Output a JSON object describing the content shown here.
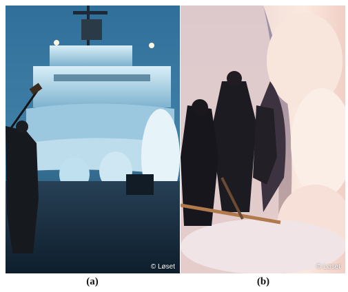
{
  "panels": [
    {
      "id": "a",
      "caption": "(a)",
      "credit": "© Løset"
    },
    {
      "id": "b",
      "caption": "(b)",
      "credit": "© Løset"
    }
  ]
}
